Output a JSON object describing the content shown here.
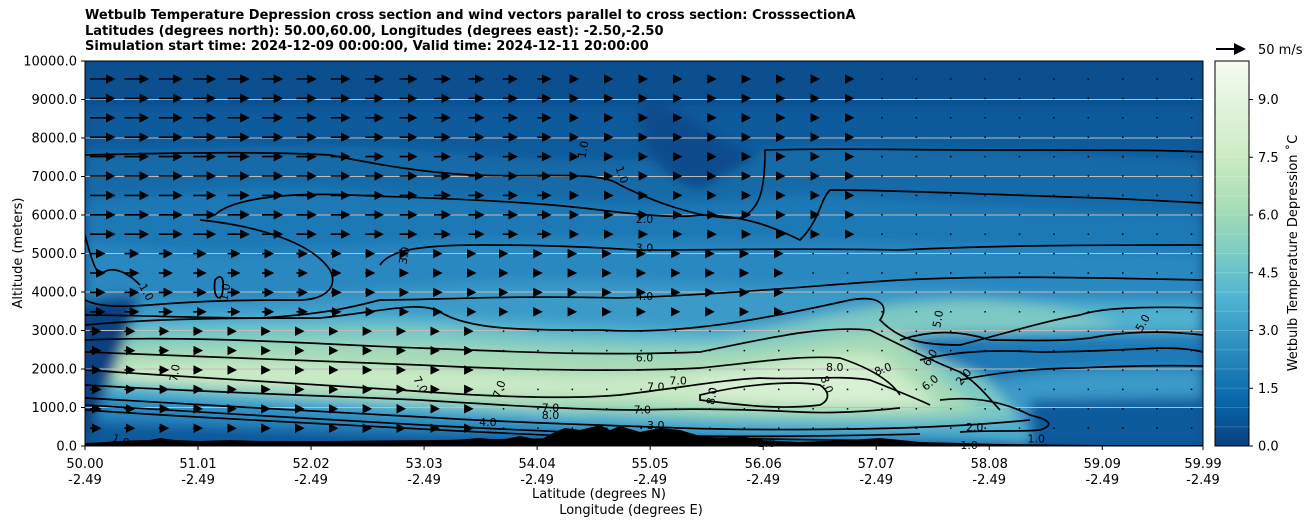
{
  "title": {
    "line1": "Wetbulb Temperature Depression cross section and wind vectors parallel to cross section: CrosssectionA",
    "line2": "Latitudes (degrees north): 50.00,60.00, Longitudes (degrees east): -2.50,-2.50",
    "line3": "Simulation start time: 2024-12-09 00:00:00, Valid time: 2024-12-11 20:00:00"
  },
  "chart_data": {
    "type": "contour",
    "ylabel": "Altitude (meters)",
    "xlabel_lat": "Latitude (degrees N)",
    "xlabel_lon": "Longitude (degrees E)",
    "ylim": [
      0,
      10000
    ],
    "y_ticks": [
      "0.0",
      "1000.0",
      "2000.0",
      "3000.0",
      "4000.0",
      "5000.0",
      "6000.0",
      "7000.0",
      "8000.0",
      "9000.0",
      "10000.0"
    ],
    "x_ticks": [
      {
        "value": 50.0,
        "lat": "50.00",
        "lon": "-2.49"
      },
      {
        "value": 51.01,
        "lat": "51.01",
        "lon": "-2.49"
      },
      {
        "value": 52.02,
        "lat": "52.02",
        "lon": "-2.49"
      },
      {
        "value": 53.03,
        "lat": "53.03",
        "lon": "-2.49"
      },
      {
        "value": 54.04,
        "lat": "54.04",
        "lon": "-2.49"
      },
      {
        "value": 55.05,
        "lat": "55.05",
        "lon": "-2.49"
      },
      {
        "value": 56.06,
        "lat": "56.06",
        "lon": "-2.49"
      },
      {
        "value": 57.07,
        "lat": "57.07",
        "lon": "-2.49"
      },
      {
        "value": 58.08,
        "lat": "58.08",
        "lon": "-2.49"
      },
      {
        "value": 59.09,
        "lat": "59.09",
        "lon": "-2.49"
      },
      {
        "value": 59.99,
        "lat": "59.99",
        "lon": "-2.49"
      }
    ],
    "xlim": [
      50.0,
      59.99
    ],
    "colorbar": {
      "label": "Wetbulb Temperature Depression ˚C",
      "range": [
        0,
        10
      ],
      "ticks": [
        "0.0",
        "1.5",
        "3.0",
        "4.5",
        "6.0",
        "7.5",
        "9.0"
      ],
      "tick_values": [
        0,
        1.5,
        3,
        4.5,
        6,
        7.5,
        9
      ]
    },
    "quiver_key": "50 m/s",
    "contour_labels": [
      {
        "text": "1.0",
        "lat": 50.55,
        "alt": 4000,
        "rot": 60
      },
      {
        "text": "1.0",
        "lat": 51.25,
        "alt": 4000,
        "rot": -80
      },
      {
        "text": "3.0",
        "lat": 52.85,
        "alt": 4950,
        "rot": -80
      },
      {
        "text": "1.0",
        "lat": 54.45,
        "alt": 7700,
        "rot": -80
      },
      {
        "text": "1.0",
        "lat": 54.8,
        "alt": 7050,
        "rot": 70
      },
      {
        "text": "2.0",
        "lat": 55.0,
        "alt": 5900,
        "rot": 0
      },
      {
        "text": "3.0",
        "lat": 55.0,
        "alt": 5150,
        "rot": 0
      },
      {
        "text": "4.0",
        "lat": 55.0,
        "alt": 3900,
        "rot": 0
      },
      {
        "text": "6.0",
        "lat": 55.0,
        "alt": 2300,
        "rot": 0
      },
      {
        "text": "7.0",
        "lat": 55.1,
        "alt": 1540,
        "rot": 0
      },
      {
        "text": "7.0",
        "lat": 55.3,
        "alt": 1700,
        "rot": 0
      },
      {
        "text": "7.0",
        "lat": 50.8,
        "alt": 1900,
        "rot": -80
      },
      {
        "text": "7.0",
        "lat": 53.0,
        "alt": 1600,
        "rot": 60
      },
      {
        "text": "7.0",
        "lat": 53.7,
        "alt": 1480,
        "rot": -70
      },
      {
        "text": "7.0",
        "lat": 54.16,
        "alt": 1000,
        "rot": 0
      },
      {
        "text": "7.0",
        "lat": 54.98,
        "alt": 950,
        "rot": 0
      },
      {
        "text": "8.0",
        "lat": 54.16,
        "alt": 800,
        "rot": 0
      },
      {
        "text": "8.0",
        "lat": 55.6,
        "alt": 1300,
        "rot": -80
      },
      {
        "text": "8.0",
        "lat": 56.63,
        "alt": 1600,
        "rot": 70
      },
      {
        "text": "8.0",
        "lat": 56.7,
        "alt": 2050,
        "rot": 0
      },
      {
        "text": "8.0",
        "lat": 57.13,
        "alt": 2000,
        "rot": -20
      },
      {
        "text": "4.0",
        "lat": 53.6,
        "alt": 620,
        "rot": 0
      },
      {
        "text": "3.0",
        "lat": 55.1,
        "alt": 540,
        "rot": 0
      },
      {
        "text": "6.0",
        "lat": 57.55,
        "alt": 1650,
        "rot": -40
      },
      {
        "text": "6.0",
        "lat": 57.55,
        "alt": 2300,
        "rot": -60
      },
      {
        "text": "5.0",
        "lat": 57.62,
        "alt": 3300,
        "rot": -80
      },
      {
        "text": "5.0",
        "lat": 59.45,
        "alt": 3200,
        "rot": -60
      },
      {
        "text": "2.0",
        "lat": 57.95,
        "alt": 500,
        "rot": 0
      },
      {
        "text": "2.0",
        "lat": 57.85,
        "alt": 1800,
        "rot": -50
      },
      {
        "text": "1.0",
        "lat": 56.09,
        "alt": 80,
        "rot": 0
      },
      {
        "text": "1.0",
        "lat": 50.32,
        "alt": 150,
        "rot": 20
      },
      {
        "text": "1.0",
        "lat": 57.9,
        "alt": 30,
        "rot": 0
      },
      {
        "text": "1.0",
        "lat": 58.5,
        "alt": 200,
        "rot": 0
      }
    ]
  },
  "colors": {
    "deep": "#0a4b8c",
    "mid": "#2b8cbe",
    "light": "#7bccc4",
    "pale": "#ccebc5"
  }
}
